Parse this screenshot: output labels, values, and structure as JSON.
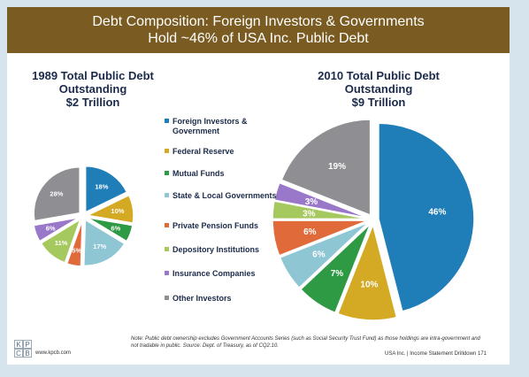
{
  "header": {
    "title_line1": "Debt Composition: Foreign Investors & Governments",
    "title_line2": "Hold ~46% of USA Inc. Public Debt"
  },
  "legend": [
    {
      "label": "Foreign Investors & Government",
      "color": "#1f7db8"
    },
    {
      "label": "Federal Reserve",
      "color": "#d4a923"
    },
    {
      "label": "Mutual Funds",
      "color": "#2e9a44"
    },
    {
      "label": "State & Local Governments",
      "color": "#8fc6d4"
    },
    {
      "label": "Private Pension Funds",
      "color": "#e06a3a"
    },
    {
      "label": "Depository Institutions",
      "color": "#a5c85f"
    },
    {
      "label": "Insurance Companies",
      "color": "#9a78c9"
    },
    {
      "label": "Other Investors",
      "color": "#8e8e93"
    }
  ],
  "chart_data": [
    {
      "type": "pie",
      "title_lines": [
        "1989 Total Public Debt",
        "Outstanding",
        "$2 Trillion"
      ],
      "categories": [
        "Foreign Investors & Government",
        "Federal Reserve",
        "Mutual Funds",
        "State & Local Governments",
        "Private Pension Funds",
        "Depository Institutions",
        "Insurance Companies",
        "Other Investors"
      ],
      "values": [
        18,
        10,
        6,
        17,
        5,
        11,
        6,
        28
      ],
      "labels": [
        "18%",
        "10%",
        "6%",
        "17%",
        "5%",
        "11%",
        "6%",
        "28%"
      ]
    },
    {
      "type": "pie",
      "title_lines": [
        "2010 Total Public Debt",
        "Outstanding",
        "$9 Trillion"
      ],
      "categories": [
        "Foreign Investors & Government",
        "Federal Reserve",
        "Mutual Funds",
        "State & Local Governments",
        "Private Pension Funds",
        "Depository Institutions",
        "Insurance Companies",
        "Other Investors"
      ],
      "values": [
        46,
        10,
        7,
        6,
        6,
        3,
        3,
        19
      ],
      "labels": [
        "46%",
        "10%",
        "7%",
        "6%",
        "6%",
        "3%",
        "3%",
        "19%"
      ]
    }
  ],
  "footer": {
    "note": "Note: Public debt ownership excludes Government Accounts Series (such as Social Security Trust Fund) as those holdings are intra-government and not tradable in public. Source: Dept. of Treasury, as of CQ2:10.",
    "right": "USA Inc. | Income Statement Drilldown",
    "page_number": "171",
    "website": "www.kpcb.com",
    "logo_letters": [
      "K",
      "P",
      "C",
      "B"
    ]
  }
}
